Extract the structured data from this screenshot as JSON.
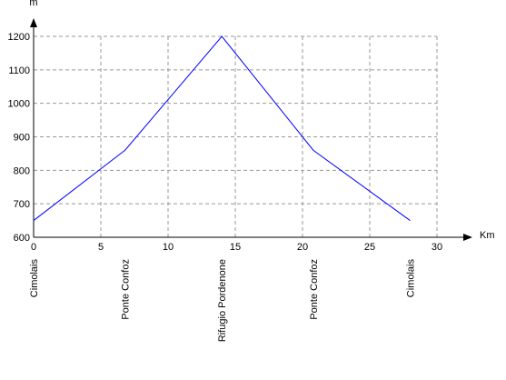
{
  "chart_data": {
    "type": "line",
    "x_label": "Km",
    "y_label": "m",
    "x": [
      0,
      6.8,
      14,
      20.8,
      28
    ],
    "values": [
      650,
      860,
      1200,
      860,
      650
    ],
    "point_labels": [
      "Cimolais",
      "Ponte Confoz",
      "Rifugio Pordenone",
      "Ponte Confoz",
      "Cimolais"
    ],
    "color": "#0000ff",
    "xlim": [
      0,
      30
    ],
    "xticks": [
      0,
      5,
      10,
      15,
      20,
      25,
      30
    ],
    "ylim": [
      600,
      1200
    ],
    "yticks": [
      600,
      700,
      800,
      900,
      1000,
      1100,
      1200
    ],
    "grid": true
  }
}
